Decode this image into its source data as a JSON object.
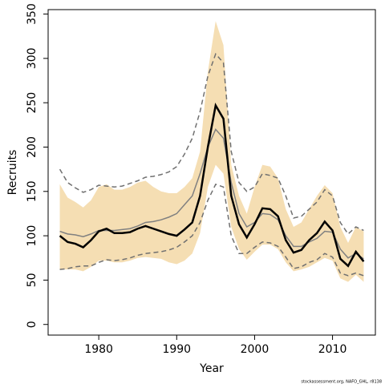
{
  "chart_data": {
    "type": "line",
    "xlabel": "Year",
    "ylabel": "Recruits",
    "footer": "stockassessment.org, NAFO_GHL, r8138",
    "x": [
      1975,
      1976,
      1977,
      1978,
      1979,
      1980,
      1981,
      1982,
      1983,
      1984,
      1985,
      1986,
      1987,
      1988,
      1989,
      1990,
      1991,
      1992,
      1993,
      1994,
      1995,
      1996,
      1997,
      1998,
      1999,
      2000,
      2001,
      2002,
      2003,
      2004,
      2005,
      2006,
      2007,
      2008,
      2009,
      2010,
      2011,
      2012,
      2013,
      2014
    ],
    "band": {
      "color": "#f5deb3",
      "upper": [
        158,
        143,
        138,
        132,
        140,
        155,
        158,
        152,
        152,
        155,
        160,
        162,
        155,
        150,
        148,
        148,
        155,
        165,
        195,
        285,
        342,
        315,
        180,
        145,
        125,
        155,
        180,
        178,
        165,
        130,
        110,
        115,
        130,
        145,
        157,
        148,
        110,
        92,
        110,
        105
      ],
      "lower": [
        62,
        62,
        62,
        60,
        65,
        72,
        72,
        70,
        70,
        72,
        75,
        76,
        75,
        74,
        70,
        68,
        72,
        80,
        103,
        155,
        180,
        170,
        110,
        85,
        73,
        82,
        90,
        90,
        85,
        70,
        60,
        62,
        65,
        70,
        75,
        72,
        52,
        48,
        56,
        48
      ]
    },
    "series": [
      {
        "color": "#707070",
        "dashed": true,
        "width": 1.5,
        "values": [
          175,
          160,
          154,
          149,
          152,
          157,
          156,
          155,
          156,
          159,
          162,
          166,
          167,
          169,
          172,
          178,
          192,
          210,
          240,
          280,
          305,
          295,
          195,
          160,
          150,
          155,
          170,
          168,
          165,
          145,
          120,
          122,
          130,
          138,
          152,
          145,
          115,
          102,
          110,
          106
        ]
      },
      {
        "color": "#707070",
        "dashed": true,
        "width": 1.5,
        "values": [
          62,
          63,
          65,
          66,
          66,
          70,
          73,
          72,
          73,
          75,
          78,
          80,
          81,
          82,
          84,
          87,
          93,
          100,
          115,
          140,
          158,
          155,
          100,
          80,
          80,
          87,
          93,
          92,
          88,
          76,
          63,
          65,
          70,
          73,
          80,
          76,
          58,
          55,
          58,
          55
        ]
      },
      {
        "color": "#808080",
        "dashed": false,
        "width": 1.5,
        "values": [
          105,
          102,
          101,
          99,
          102,
          106,
          106,
          106,
          107,
          108,
          111,
          115,
          116,
          118,
          121,
          125,
          135,
          145,
          170,
          200,
          220,
          210,
          160,
          125,
          110,
          115,
          125,
          124,
          118,
          100,
          88,
          88,
          93,
          97,
          105,
          104,
          85,
          75,
          80,
          74
        ]
      },
      {
        "color": "#000000",
        "dashed": false,
        "width": 2.5,
        "values": [
          100,
          93,
          91,
          87,
          95,
          105,
          108,
          103,
          103,
          104,
          108,
          111,
          108,
          105,
          102,
          100,
          107,
          115,
          145,
          200,
          247,
          232,
          145,
          113,
          98,
          113,
          131,
          130,
          122,
          95,
          81,
          84,
          95,
          103,
          116,
          106,
          74,
          66,
          82,
          71
        ]
      }
    ],
    "xlim": [
      1973.5,
      2015.5
    ],
    "xticks": [
      1980,
      1990,
      2000,
      2010
    ],
    "ylim": [
      -12,
      355
    ],
    "yticks": [
      0,
      50,
      100,
      150,
      200,
      250,
      300,
      350
    ]
  }
}
